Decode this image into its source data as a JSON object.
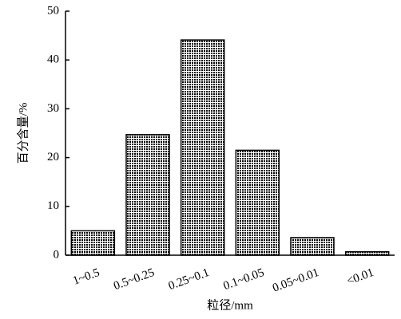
{
  "chart_data": {
    "type": "bar",
    "categories": [
      "1~0.5",
      "0.5~0.25",
      "0.25~0.1",
      "0.1~0.05",
      "0.05~0.01",
      "<0.01"
    ],
    "values": [
      5,
      24.7,
      44.1,
      21.5,
      3.6,
      0.7
    ],
    "color": "#000000",
    "xlabel": "粒径/mm",
    "ylabel": "百分含量/%",
    "ylim": [
      0,
      50
    ],
    "yticks": [
      0,
      10,
      20,
      30,
      40,
      50
    ]
  }
}
